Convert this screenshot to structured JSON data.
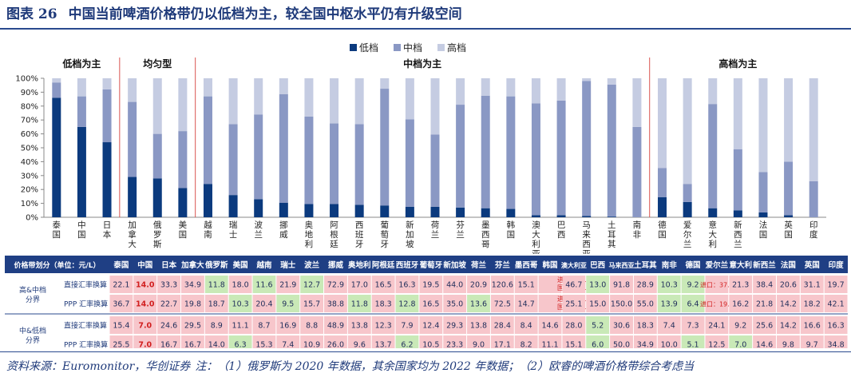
{
  "title": {
    "label": "图表 26",
    "text": "中国当前啤酒价格带仍以低档为主，较全国中枢水平仍有升级空间"
  },
  "chart_data": {
    "type": "bar",
    "stacked": true,
    "ylim": [
      0,
      100
    ],
    "yticks": [
      "0%",
      "10%",
      "20%",
      "30%",
      "40%",
      "50%",
      "60%",
      "70%",
      "80%",
      "90%",
      "100%"
    ],
    "grid": false,
    "legend_position": "top",
    "colors": {
      "低档": "#0b3a7e",
      "中档": "#8a98c4",
      "高档": "#c5cce2"
    },
    "categories": [
      "泰国",
      "中国",
      "日本",
      "加拿大",
      "俄罗斯",
      "美国",
      "越南",
      "瑞士",
      "波兰",
      "挪威",
      "奥地利",
      "阿根廷",
      "西班牙",
      "葡萄牙",
      "新加坡",
      "荷兰",
      "芬兰",
      "墨西哥",
      "韩国",
      "澳大利亚",
      "巴西",
      "马来西亚",
      "土耳其",
      "南非",
      "德国",
      "爱尔兰",
      "意大利",
      "新西兰",
      "法国",
      "英国",
      "印度"
    ],
    "series": [
      {
        "name": "低档",
        "values": [
          86,
          65,
          54,
          29,
          28,
          21,
          24,
          16,
          13,
          10.5,
          9.5,
          9.5,
          9,
          8.5,
          7.5,
          7.5,
          7,
          6.5,
          6,
          1.5,
          1.5,
          1,
          0.5,
          0,
          14.5,
          11,
          6.5,
          5,
          3.5,
          1.5,
          0
        ]
      },
      {
        "name": "中档",
        "values": [
          11,
          22,
          38,
          54,
          32,
          41,
          63,
          51,
          61,
          78,
          63,
          58,
          58,
          84,
          63,
          52,
          74,
          81,
          81,
          80.5,
          82.5,
          97,
          95,
          65,
          21,
          13,
          75,
          44,
          29,
          38.5,
          26
        ]
      },
      {
        "name": "高档",
        "values": [
          3,
          13,
          8,
          17,
          40,
          38,
          13,
          33,
          26,
          11.5,
          27.5,
          32.5,
          33,
          7.5,
          29.5,
          40.5,
          19,
          12.5,
          13,
          18,
          16,
          2,
          4.5,
          35,
          64.5,
          76,
          18.5,
          51,
          67.5,
          60,
          74
        ]
      }
    ],
    "groups": [
      {
        "label": "低档为主",
        "start": 0,
        "end": 2
      },
      {
        "label": "均匀型",
        "start": 3,
        "end": 5
      },
      {
        "label": "中档为主",
        "start": 6,
        "end": 23
      },
      {
        "label": "高档为主",
        "start": 24,
        "end": 30
      }
    ]
  },
  "table": {
    "header_label": "价格带划分（单位：元/L）",
    "countries": [
      "泰国",
      "中国",
      "日本",
      "加拿大",
      "俄罗斯",
      "美国",
      "越南",
      "瑞士",
      "波兰",
      "挪威",
      "奥地利",
      "阿根廷",
      "西班牙",
      "葡萄牙",
      "新加坡",
      "荷兰",
      "芬兰",
      "墨西哥",
      "韩国",
      "澳大利亚",
      "巴西",
      "马来西亚",
      "土耳其",
      "南非",
      "德国",
      "爱尔兰",
      "意大利",
      "新西兰",
      "法国",
      "英国",
      "印度"
    ],
    "groups": [
      {
        "label": "高&中档分界",
        "rows": [
          {
            "label": "直接汇率换算",
            "values": [
              "22.1",
              "14.0",
              "33.3",
              "34.9",
              "11.8",
              "18.0",
              "11.6",
              "21.9",
              "12.7",
              "72.9",
              "17.0",
              "16.5",
              "16.3",
              "19.5",
              "44.0",
              "20.9",
              "120.6",
              "15.1",
              "进口：24.5|国产：19.8",
              "46.7",
              "13.0",
              "91.8",
              "28.9",
              "10.3",
              "9.2",
              "进口：37.6",
              "21.3",
              "38.4",
              "20.6",
              "31.1",
              "19.7"
            ],
            "tones": [
              "p",
              "b",
              "p",
              "p",
              "g",
              "p",
              "g",
              "p",
              "g",
              "p",
              "p",
              "p",
              "p",
              "p",
              "p",
              "p",
              "p",
              "p",
              "p",
              "p",
              "g",
              "p",
              "p",
              "g",
              "g",
              "p",
              "p",
              "p",
              "p",
              "p",
              "p"
            ]
          },
          {
            "label": "PPP 汇率换算",
            "values": [
              "36.7",
              "14.0",
              "22.7",
              "19.8",
              "18.7",
              "10.3",
              "20.4",
              "9.5",
              "15.7",
              "38.8",
              "11.8",
              "18.3",
              "12.8",
              "16.5",
              "35.0",
              "13.6",
              "72.5",
              "14.7",
              "进口：18.7|国产：15.1",
              "25.1",
              "15.0",
              "150.0",
              "55.0",
              "13.9",
              "6.4",
              "进口：19.5",
              "16.2",
              "21.8",
              "14.2",
              "18.2",
              "42.1"
            ],
            "tones": [
              "p",
              "b",
              "p",
              "p",
              "p",
              "g",
              "p",
              "g",
              "p",
              "p",
              "g",
              "p",
              "g",
              "p",
              "p",
              "g",
              "p",
              "p",
              "p",
              "p",
              "p",
              "p",
              "p",
              "g",
              "g",
              "p",
              "p",
              "p",
              "p",
              "p",
              "p"
            ]
          }
        ]
      },
      {
        "label": "中&低档分界",
        "rows": [
          {
            "label": "直接汇率换算",
            "values": [
              "15.4",
              "7.0",
              "24.6",
              "29.5",
              "8.9",
              "11.1",
              "8.7",
              "16.9",
              "8.8",
              "48.9",
              "13.8",
              "12.3",
              "7.9",
              "12.4",
              "29.3",
              "13.8",
              "28.4",
              "8.4",
              "14.6",
              "28.0",
              "5.2",
              "30.6",
              "18.3",
              "7.4",
              "7.3",
              "24.1",
              "9.2",
              "25.6",
              "14.2",
              "16.6",
              "16.3"
            ],
            "tones": [
              "p",
              "b",
              "p",
              "p",
              "p",
              "p",
              "p",
              "p",
              "p",
              "p",
              "p",
              "p",
              "p",
              "p",
              "p",
              "p",
              "p",
              "p",
              "p",
              "p",
              "g",
              "p",
              "p",
              "p",
              "p",
              "p",
              "p",
              "p",
              "p",
              "p",
              "p"
            ]
          },
          {
            "label": "PPP 汇率换算",
            "values": [
              "25.5",
              "7.0",
              "16.7",
              "16.7",
              "14.0",
              "6.3",
              "15.3",
              "7.4",
              "10.9",
              "26.0",
              "9.6",
              "13.7",
              "6.2",
              "10.5",
              "23.3",
              "9.0",
              "17.1",
              "8.2",
              "11.1",
              "15.1",
              "6.0",
              "50.0",
              "34.9",
              "10.0",
              "5.1",
              "12.5",
              "7.0",
              "14.6",
              "9.8",
              "9.7",
              "34.8"
            ],
            "tones": [
              "p",
              "b",
              "p",
              "p",
              "p",
              "g",
              "p",
              "p",
              "p",
              "p",
              "p",
              "p",
              "g",
              "p",
              "p",
              "p",
              "p",
              "p",
              "p",
              "p",
              "g",
              "p",
              "p",
              "p",
              "g",
              "p",
              "g",
              "p",
              "p",
              "p",
              "p"
            ]
          }
        ]
      }
    ]
  },
  "source": {
    "line1": "资料来源：Euromonitor，华创证券",
    "line2": "注：（1）俄罗斯为 2020 年数据，其余国家均为 2022 年数据；（2）欧睿的啤酒价格带综合考虑当"
  }
}
